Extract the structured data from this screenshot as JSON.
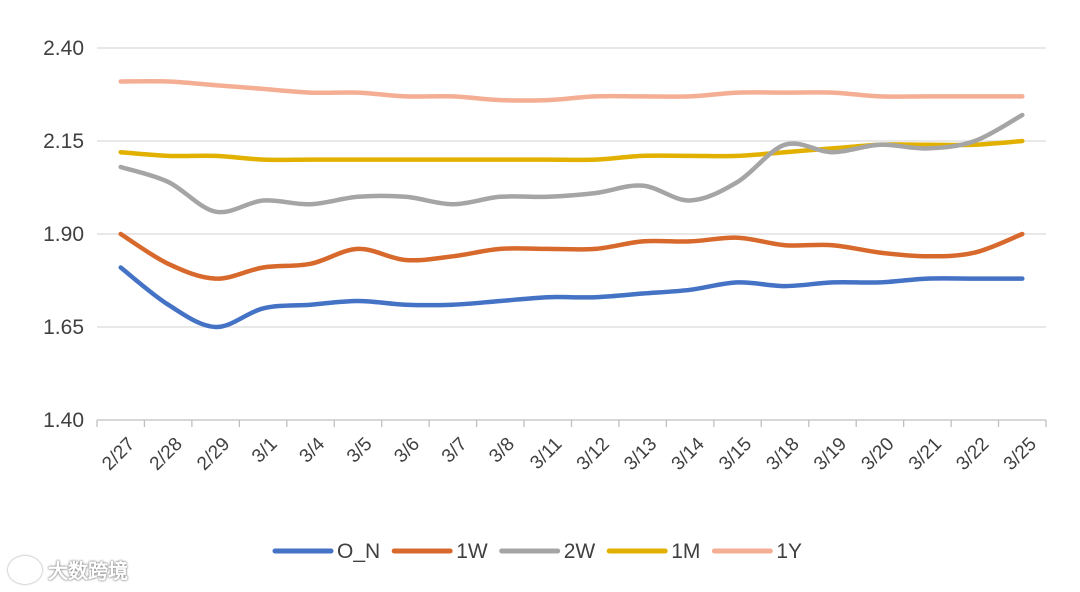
{
  "chart_data": {
    "type": "line",
    "title": "",
    "xlabel": "",
    "ylabel": "",
    "ylim": [
      1.4,
      2.4
    ],
    "yticks": [
      1.4,
      1.65,
      1.9,
      2.15,
      2.4
    ],
    "ytick_labels": [
      "1.40",
      "1.65",
      "1.90",
      "2.15",
      "2.40"
    ],
    "categories": [
      "2/27",
      "2/28",
      "2/29",
      "3/1",
      "3/4",
      "3/5",
      "3/6",
      "3/7",
      "3/8",
      "3/11",
      "3/12",
      "3/13",
      "3/14",
      "3/15",
      "3/18",
      "3/19",
      "3/20",
      "3/21",
      "3/22",
      "3/25"
    ],
    "grid": true,
    "legend_position": "bottom",
    "series": [
      {
        "name": "O_N",
        "color": "#4472c4",
        "values": [
          1.81,
          1.71,
          1.65,
          1.7,
          1.71,
          1.72,
          1.71,
          1.71,
          1.72,
          1.73,
          1.73,
          1.74,
          1.75,
          1.77,
          1.76,
          1.77,
          1.77,
          1.78,
          1.78,
          1.78
        ]
      },
      {
        "name": "1W",
        "color": "#d8692c",
        "values": [
          1.9,
          1.82,
          1.78,
          1.81,
          1.82,
          1.86,
          1.83,
          1.84,
          1.86,
          1.86,
          1.86,
          1.88,
          1.88,
          1.89,
          1.87,
          1.87,
          1.85,
          1.84,
          1.85,
          1.9
        ]
      },
      {
        "name": "2W",
        "color": "#a5a5a5",
        "values": [
          2.08,
          2.04,
          1.96,
          1.99,
          1.98,
          2.0,
          2.0,
          1.98,
          2.0,
          2.0,
          2.01,
          2.03,
          1.99,
          2.04,
          2.14,
          2.12,
          2.14,
          2.13,
          2.15,
          2.22
        ]
      },
      {
        "name": "1M",
        "color": "#e2b100",
        "values": [
          2.12,
          2.11,
          2.11,
          2.1,
          2.1,
          2.1,
          2.1,
          2.1,
          2.1,
          2.1,
          2.1,
          2.11,
          2.11,
          2.11,
          2.12,
          2.13,
          2.14,
          2.14,
          2.14,
          2.15
        ]
      },
      {
        "name": "1Y",
        "color": "#f4ae94",
        "values": [
          2.31,
          2.31,
          2.3,
          2.29,
          2.28,
          2.28,
          2.27,
          2.27,
          2.26,
          2.26,
          2.27,
          2.27,
          2.27,
          2.28,
          2.28,
          2.28,
          2.27,
          2.27,
          2.27,
          2.27
        ]
      }
    ]
  },
  "watermark": {
    "text": "大数跨境",
    "icon": "logo-icon"
  }
}
